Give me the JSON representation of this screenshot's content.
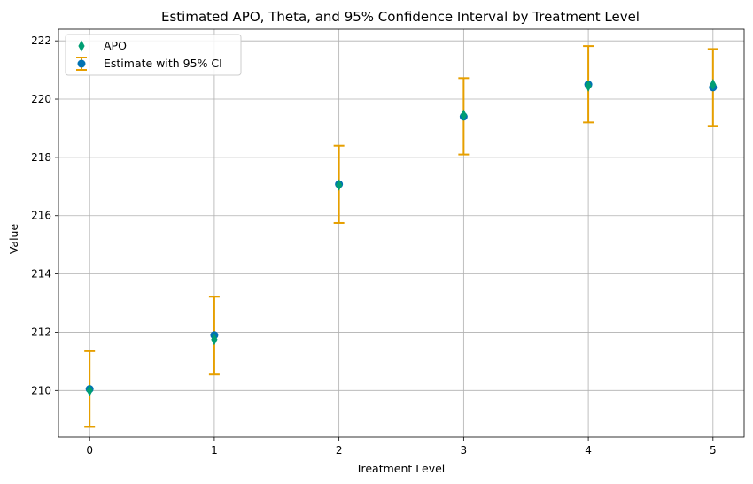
{
  "chart_data": {
    "type": "scatter",
    "title": "Estimated APO, Theta, and 95% Confidence Interval by Treatment Level",
    "xlabel": "Treatment Level",
    "ylabel": "Value",
    "xlim": [
      -0.25,
      5.25
    ],
    "ylim": [
      208.4,
      222.4
    ],
    "x_ticks": [
      0,
      1,
      2,
      3,
      4,
      5
    ],
    "y_ticks": [
      210,
      212,
      214,
      216,
      218,
      220,
      222
    ],
    "grid": true,
    "legend_position": "top-left",
    "x": [
      0,
      1,
      2,
      3,
      4,
      5
    ],
    "series": [
      {
        "name": "APO",
        "marker": "thin-diamond",
        "color": "#009E73",
        "values": [
          210.0,
          211.75,
          217.05,
          219.45,
          220.45,
          220.5
        ]
      },
      {
        "name": "Estimate with 95% CI",
        "marker": "circle",
        "color": "#0072B2",
        "error_color": "#E69F00",
        "values": [
          210.05,
          211.9,
          217.08,
          219.4,
          220.5,
          220.4
        ],
        "ci_lower": [
          208.75,
          210.55,
          215.75,
          218.1,
          219.2,
          219.08
        ],
        "ci_upper": [
          211.35,
          213.22,
          218.4,
          220.72,
          221.82,
          221.72
        ]
      }
    ]
  }
}
